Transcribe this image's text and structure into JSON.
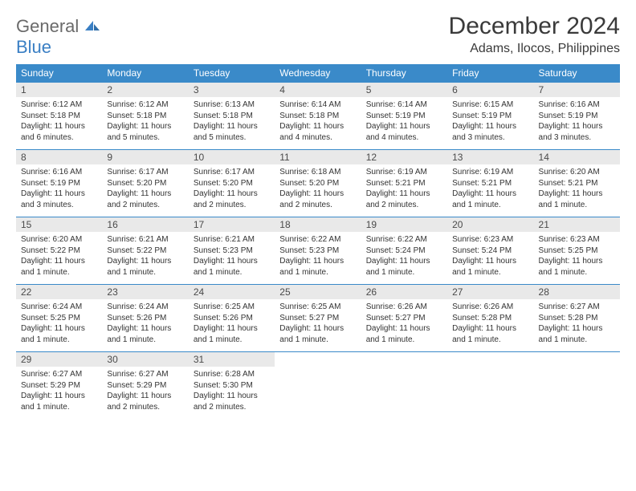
{
  "logo": {
    "word1": "General",
    "word2": "Blue"
  },
  "title": "December 2024",
  "location": "Adams, Ilocos, Philippines",
  "colors": {
    "header_bg": "#3a8ac9",
    "header_text": "#ffffff",
    "daynum_bg": "#e9e9e9",
    "border": "#3a8ac9",
    "logo_gray": "#6a6a6a",
    "logo_blue": "#3a7fc4"
  },
  "daysOfWeek": [
    "Sunday",
    "Monday",
    "Tuesday",
    "Wednesday",
    "Thursday",
    "Friday",
    "Saturday"
  ],
  "weeks": [
    [
      {
        "n": "1",
        "sr": "Sunrise: 6:12 AM",
        "ss": "Sunset: 5:18 PM",
        "dl": "Daylight: 11 hours and 6 minutes."
      },
      {
        "n": "2",
        "sr": "Sunrise: 6:12 AM",
        "ss": "Sunset: 5:18 PM",
        "dl": "Daylight: 11 hours and 5 minutes."
      },
      {
        "n": "3",
        "sr": "Sunrise: 6:13 AM",
        "ss": "Sunset: 5:18 PM",
        "dl": "Daylight: 11 hours and 5 minutes."
      },
      {
        "n": "4",
        "sr": "Sunrise: 6:14 AM",
        "ss": "Sunset: 5:18 PM",
        "dl": "Daylight: 11 hours and 4 minutes."
      },
      {
        "n": "5",
        "sr": "Sunrise: 6:14 AM",
        "ss": "Sunset: 5:19 PM",
        "dl": "Daylight: 11 hours and 4 minutes."
      },
      {
        "n": "6",
        "sr": "Sunrise: 6:15 AM",
        "ss": "Sunset: 5:19 PM",
        "dl": "Daylight: 11 hours and 3 minutes."
      },
      {
        "n": "7",
        "sr": "Sunrise: 6:16 AM",
        "ss": "Sunset: 5:19 PM",
        "dl": "Daylight: 11 hours and 3 minutes."
      }
    ],
    [
      {
        "n": "8",
        "sr": "Sunrise: 6:16 AM",
        "ss": "Sunset: 5:19 PM",
        "dl": "Daylight: 11 hours and 3 minutes."
      },
      {
        "n": "9",
        "sr": "Sunrise: 6:17 AM",
        "ss": "Sunset: 5:20 PM",
        "dl": "Daylight: 11 hours and 2 minutes."
      },
      {
        "n": "10",
        "sr": "Sunrise: 6:17 AM",
        "ss": "Sunset: 5:20 PM",
        "dl": "Daylight: 11 hours and 2 minutes."
      },
      {
        "n": "11",
        "sr": "Sunrise: 6:18 AM",
        "ss": "Sunset: 5:20 PM",
        "dl": "Daylight: 11 hours and 2 minutes."
      },
      {
        "n": "12",
        "sr": "Sunrise: 6:19 AM",
        "ss": "Sunset: 5:21 PM",
        "dl": "Daylight: 11 hours and 2 minutes."
      },
      {
        "n": "13",
        "sr": "Sunrise: 6:19 AM",
        "ss": "Sunset: 5:21 PM",
        "dl": "Daylight: 11 hours and 1 minute."
      },
      {
        "n": "14",
        "sr": "Sunrise: 6:20 AM",
        "ss": "Sunset: 5:21 PM",
        "dl": "Daylight: 11 hours and 1 minute."
      }
    ],
    [
      {
        "n": "15",
        "sr": "Sunrise: 6:20 AM",
        "ss": "Sunset: 5:22 PM",
        "dl": "Daylight: 11 hours and 1 minute."
      },
      {
        "n": "16",
        "sr": "Sunrise: 6:21 AM",
        "ss": "Sunset: 5:22 PM",
        "dl": "Daylight: 11 hours and 1 minute."
      },
      {
        "n": "17",
        "sr": "Sunrise: 6:21 AM",
        "ss": "Sunset: 5:23 PM",
        "dl": "Daylight: 11 hours and 1 minute."
      },
      {
        "n": "18",
        "sr": "Sunrise: 6:22 AM",
        "ss": "Sunset: 5:23 PM",
        "dl": "Daylight: 11 hours and 1 minute."
      },
      {
        "n": "19",
        "sr": "Sunrise: 6:22 AM",
        "ss": "Sunset: 5:24 PM",
        "dl": "Daylight: 11 hours and 1 minute."
      },
      {
        "n": "20",
        "sr": "Sunrise: 6:23 AM",
        "ss": "Sunset: 5:24 PM",
        "dl": "Daylight: 11 hours and 1 minute."
      },
      {
        "n": "21",
        "sr": "Sunrise: 6:23 AM",
        "ss": "Sunset: 5:25 PM",
        "dl": "Daylight: 11 hours and 1 minute."
      }
    ],
    [
      {
        "n": "22",
        "sr": "Sunrise: 6:24 AM",
        "ss": "Sunset: 5:25 PM",
        "dl": "Daylight: 11 hours and 1 minute."
      },
      {
        "n": "23",
        "sr": "Sunrise: 6:24 AM",
        "ss": "Sunset: 5:26 PM",
        "dl": "Daylight: 11 hours and 1 minute."
      },
      {
        "n": "24",
        "sr": "Sunrise: 6:25 AM",
        "ss": "Sunset: 5:26 PM",
        "dl": "Daylight: 11 hours and 1 minute."
      },
      {
        "n": "25",
        "sr": "Sunrise: 6:25 AM",
        "ss": "Sunset: 5:27 PM",
        "dl": "Daylight: 11 hours and 1 minute."
      },
      {
        "n": "26",
        "sr": "Sunrise: 6:26 AM",
        "ss": "Sunset: 5:27 PM",
        "dl": "Daylight: 11 hours and 1 minute."
      },
      {
        "n": "27",
        "sr": "Sunrise: 6:26 AM",
        "ss": "Sunset: 5:28 PM",
        "dl": "Daylight: 11 hours and 1 minute."
      },
      {
        "n": "28",
        "sr": "Sunrise: 6:27 AM",
        "ss": "Sunset: 5:28 PM",
        "dl": "Daylight: 11 hours and 1 minute."
      }
    ],
    [
      {
        "n": "29",
        "sr": "Sunrise: 6:27 AM",
        "ss": "Sunset: 5:29 PM",
        "dl": "Daylight: 11 hours and 1 minute."
      },
      {
        "n": "30",
        "sr": "Sunrise: 6:27 AM",
        "ss": "Sunset: 5:29 PM",
        "dl": "Daylight: 11 hours and 2 minutes."
      },
      {
        "n": "31",
        "sr": "Sunrise: 6:28 AM",
        "ss": "Sunset: 5:30 PM",
        "dl": "Daylight: 11 hours and 2 minutes."
      },
      null,
      null,
      null,
      null
    ]
  ]
}
